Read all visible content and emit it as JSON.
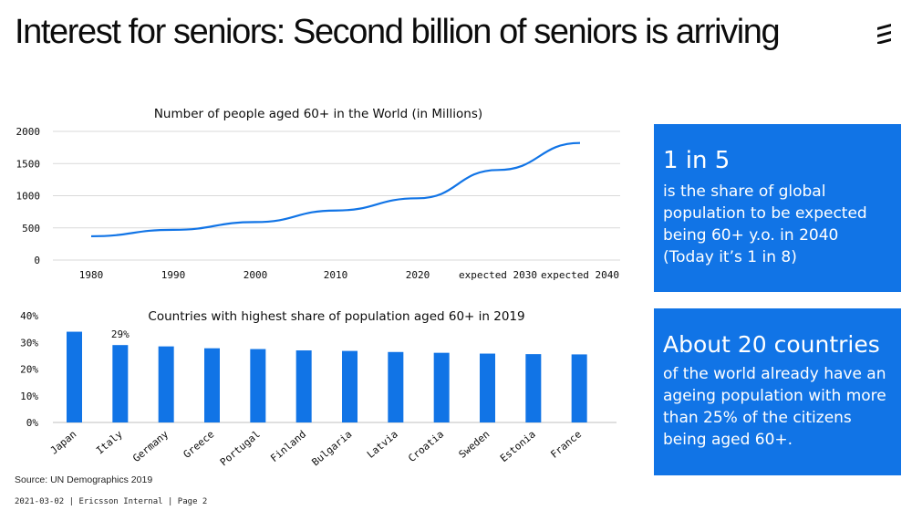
{
  "slide": {
    "title": "Interest for seniors: Second billion of seniors is arriving",
    "source": "Source: UN Demographics 2019",
    "footer": "2021-03-02 | Ericsson Internal | Page 2",
    "logo_icon": "ericsson-logo-icon"
  },
  "colors": {
    "accent": "#1174e6",
    "text": "#0c0c0c",
    "grid": "#d9d9d9"
  },
  "box1": {
    "headline": "1 in 5",
    "lines": [
      "is the share of global",
      "population to be expected",
      "being 60+ y.o. in 2040",
      "(Today it’s 1 in 8)"
    ]
  },
  "box2": {
    "headline": "About 20 countries",
    "lines": [
      "of the world already have an",
      "ageing population with more",
      "than 25% of the citizens",
      "being aged 60+."
    ]
  },
  "chart_data": [
    {
      "type": "line",
      "title": "Number of people aged 60+ in the World (in Millions)",
      "categories": [
        "1980",
        "1990",
        "2000",
        "2010",
        "2020",
        "expected 2030",
        "expected 2040"
      ],
      "values": [
        370,
        470,
        590,
        770,
        960,
        1400,
        1820
      ],
      "yticks": [
        "2000",
        "1500",
        "1000",
        "500",
        "0"
      ],
      "ylim": [
        0,
        2000
      ],
      "grid": true
    },
    {
      "type": "bar",
      "title": "Countries with highest share of population aged 60+ in 2019",
      "categories": [
        "Japan",
        "Italy",
        "Germany",
        "Greece",
        "Portugal",
        "Finland",
        "Bulgaria",
        "Latvia",
        "Croatia",
        "Sweden",
        "Estonia",
        "France"
      ],
      "values": [
        34.0,
        29.0,
        28.5,
        27.8,
        27.5,
        27.0,
        26.8,
        26.4,
        26.1,
        25.8,
        25.6,
        25.5
      ],
      "data_labels": {
        "Italy": "29%"
      },
      "yticks": [
        "40%",
        "30%",
        "20%",
        "10%",
        "0%"
      ],
      "ylim": [
        0,
        40
      ],
      "grid": false
    }
  ]
}
